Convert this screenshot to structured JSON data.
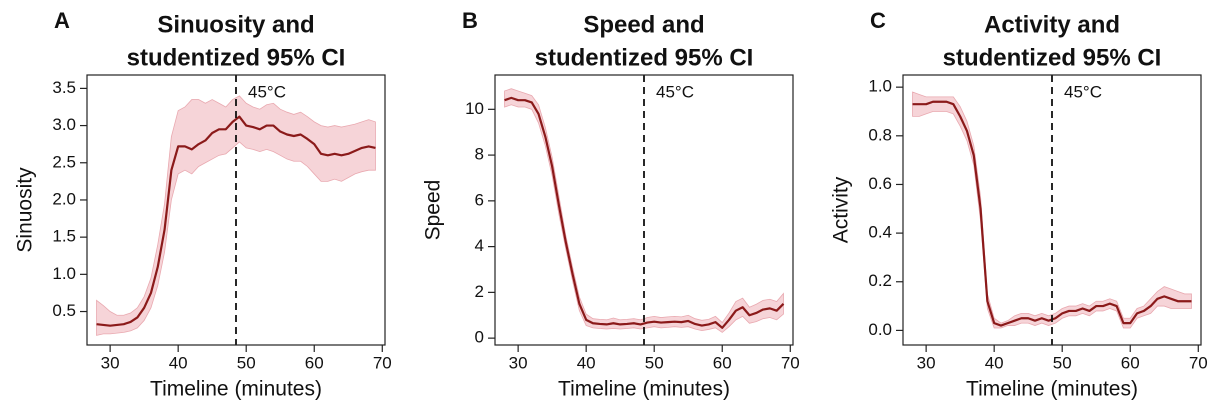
{
  "chart_data": [
    {
      "type": "line",
      "panel_label": "A",
      "title": [
        "Sinuosity and",
        "studentized 95% CI"
      ],
      "x_label": "Timeline (minutes)",
      "y_label": "Sinuosity",
      "xlim": [
        26.6,
        70.4
      ],
      "xticks": [
        30,
        40,
        50,
        60,
        70
      ],
      "ylim": [
        0.05,
        3.68
      ],
      "yticks": [
        0.5,
        {
          "value": 1,
          "label": "1.0"
        },
        1.5,
        {
          "value": 2,
          "label": "2.0"
        },
        2.5,
        {
          "value": 3,
          "label": "3.0"
        },
        3.5
      ],
      "vline": {
        "x": 48.5,
        "label": "45°C"
      },
      "x": [
        28,
        29,
        30,
        31,
        32,
        33,
        34,
        35,
        36,
        37,
        38,
        39,
        40,
        41,
        42,
        43,
        44,
        45,
        46,
        47,
        48,
        49,
        50,
        51,
        52,
        53,
        54,
        55,
        56,
        57,
        58,
        59,
        60,
        61,
        62,
        63,
        64,
        65,
        66,
        67,
        68,
        69
      ],
      "series": [
        {
          "color": "#8b1a1a",
          "band_color": "#f4cdd1",
          "values": [
            0.33,
            0.32,
            0.31,
            0.32,
            0.33,
            0.36,
            0.42,
            0.55,
            0.75,
            1.1,
            1.6,
            2.4,
            2.72,
            2.72,
            2.68,
            2.75,
            2.8,
            2.9,
            2.95,
            2.95,
            3.05,
            3.12,
            3.0,
            2.98,
            2.95,
            3.0,
            3.0,
            2.92,
            2.88,
            2.86,
            2.88,
            2.82,
            2.75,
            2.62,
            2.6,
            2.62,
            2.6,
            2.62,
            2.66,
            2.7,
            2.72,
            2.7
          ],
          "lower": [
            0.18,
            0.2,
            0.2,
            0.21,
            0.22,
            0.24,
            0.28,
            0.38,
            0.55,
            0.85,
            1.3,
            2.0,
            2.35,
            2.4,
            2.35,
            2.45,
            2.5,
            2.55,
            2.6,
            2.62,
            2.7,
            2.78,
            2.7,
            2.68,
            2.65,
            2.68,
            2.65,
            2.6,
            2.55,
            2.52,
            2.52,
            2.45,
            2.35,
            2.25,
            2.25,
            2.28,
            2.25,
            2.3,
            2.35,
            2.38,
            2.4,
            2.4
          ],
          "upper": [
            0.65,
            0.58,
            0.5,
            0.45,
            0.45,
            0.48,
            0.55,
            0.7,
            0.95,
            1.4,
            1.95,
            2.85,
            3.2,
            3.25,
            3.35,
            3.35,
            3.3,
            3.35,
            3.3,
            3.25,
            3.35,
            3.4,
            3.3,
            3.25,
            3.22,
            3.28,
            3.3,
            3.22,
            3.18,
            3.15,
            3.18,
            3.12,
            3.05,
            3.0,
            2.98,
            3.0,
            2.98,
            3.0,
            3.02,
            3.05,
            3.08,
            3.05
          ]
        }
      ]
    },
    {
      "type": "line",
      "panel_label": "B",
      "title": [
        "Speed and",
        "studentized 95% CI"
      ],
      "x_label": "Timeline (minutes)",
      "y_label": "Speed",
      "xlim": [
        26.6,
        70.4
      ],
      "xticks": [
        30,
        40,
        50,
        60,
        70
      ],
      "ylim": [
        -0.3,
        11.5
      ],
      "yticks": [
        0,
        2,
        4,
        6,
        8,
        10
      ],
      "vline": {
        "x": 48.5,
        "label": "45°C"
      },
      "x": [
        28,
        29,
        30,
        31,
        32,
        33,
        34,
        35,
        36,
        37,
        38,
        39,
        40,
        41,
        42,
        43,
        44,
        45,
        46,
        47,
        48,
        49,
        50,
        51,
        52,
        53,
        54,
        55,
        56,
        57,
        58,
        59,
        60,
        61,
        62,
        63,
        64,
        65,
        66,
        67,
        68,
        69
      ],
      "series": [
        {
          "color": "#8b1a1a",
          "band_color": "#f4cdd1",
          "values": [
            10.4,
            10.5,
            10.4,
            10.4,
            10.3,
            9.8,
            8.8,
            7.5,
            5.8,
            4.2,
            2.8,
            1.5,
            0.8,
            0.65,
            0.62,
            0.6,
            0.65,
            0.6,
            0.62,
            0.65,
            0.6,
            0.68,
            0.72,
            0.68,
            0.7,
            0.72,
            0.7,
            0.75,
            0.62,
            0.55,
            0.6,
            0.7,
            0.45,
            0.8,
            1.2,
            1.35,
            1.0,
            1.1,
            1.25,
            1.3,
            1.2,
            1.5
          ],
          "lower": [
            10.1,
            10.2,
            10.1,
            10.1,
            10.0,
            9.4,
            8.4,
            7.1,
            5.4,
            3.9,
            2.5,
            1.2,
            0.55,
            0.45,
            0.42,
            0.4,
            0.42,
            0.4,
            0.42,
            0.45,
            0.4,
            0.45,
            0.5,
            0.45,
            0.47,
            0.5,
            0.47,
            0.5,
            0.4,
            0.33,
            0.38,
            0.45,
            0.25,
            0.5,
            0.8,
            0.95,
            0.65,
            0.72,
            0.85,
            0.9,
            0.8,
            1.05
          ],
          "upper": [
            10.8,
            10.9,
            10.8,
            10.7,
            10.6,
            10.2,
            9.2,
            7.9,
            6.2,
            4.5,
            3.1,
            1.8,
            1.05,
            0.85,
            0.82,
            0.8,
            0.88,
            0.8,
            0.82,
            0.85,
            0.8,
            0.9,
            0.95,
            0.9,
            0.93,
            0.95,
            0.93,
            1.0,
            0.85,
            0.78,
            0.82,
            0.95,
            0.68,
            1.1,
            1.6,
            1.75,
            1.35,
            1.48,
            1.65,
            1.7,
            1.6,
            1.95
          ]
        }
      ]
    },
    {
      "type": "line",
      "panel_label": "C",
      "title": [
        "Activity and",
        "studentized 95% CI"
      ],
      "x_label": "Timeline (minutes)",
      "y_label": "Activity",
      "xlim": [
        26.6,
        70.4
      ],
      "xticks": [
        30,
        40,
        50,
        60,
        70
      ],
      "ylim": [
        -0.06,
        1.05
      ],
      "yticks": [
        {
          "value": 0,
          "label": "0.0"
        },
        0.2,
        0.4,
        0.6,
        0.8,
        {
          "value": 1,
          "label": "1.0"
        }
      ],
      "vline": {
        "x": 48.5,
        "label": "45°C"
      },
      "x": [
        28,
        29,
        30,
        31,
        32,
        33,
        34,
        35,
        36,
        37,
        38,
        39,
        40,
        41,
        42,
        43,
        44,
        45,
        46,
        47,
        48,
        49,
        50,
        51,
        52,
        53,
        54,
        55,
        56,
        57,
        58,
        59,
        60,
        61,
        62,
        63,
        64,
        65,
        66,
        67,
        68,
        69
      ],
      "series": [
        {
          "color": "#8b1a1a",
          "band_color": "#f4cdd1",
          "values": [
            0.93,
            0.93,
            0.93,
            0.94,
            0.94,
            0.94,
            0.93,
            0.88,
            0.82,
            0.72,
            0.5,
            0.12,
            0.03,
            0.02,
            0.03,
            0.04,
            0.05,
            0.05,
            0.04,
            0.05,
            0.04,
            0.05,
            0.07,
            0.08,
            0.08,
            0.09,
            0.08,
            0.1,
            0.1,
            0.11,
            0.1,
            0.03,
            0.03,
            0.07,
            0.08,
            0.1,
            0.13,
            0.14,
            0.13,
            0.12,
            0.12,
            0.12
          ],
          "lower": [
            0.88,
            0.88,
            0.89,
            0.9,
            0.9,
            0.9,
            0.89,
            0.84,
            0.78,
            0.68,
            0.45,
            0.09,
            0.01,
            0.01,
            0.02,
            0.02,
            0.03,
            0.03,
            0.02,
            0.03,
            0.02,
            0.03,
            0.05,
            0.06,
            0.06,
            0.07,
            0.06,
            0.08,
            0.08,
            0.09,
            0.08,
            0.01,
            0.01,
            0.05,
            0.06,
            0.07,
            0.1,
            0.1,
            0.09,
            0.09,
            0.09,
            0.09
          ],
          "upper": [
            0.98,
            0.97,
            0.96,
            0.96,
            0.96,
            0.96,
            0.96,
            0.92,
            0.86,
            0.76,
            0.55,
            0.15,
            0.05,
            0.03,
            0.04,
            0.06,
            0.07,
            0.07,
            0.06,
            0.07,
            0.06,
            0.07,
            0.09,
            0.1,
            0.1,
            0.11,
            0.1,
            0.12,
            0.12,
            0.13,
            0.12,
            0.05,
            0.05,
            0.09,
            0.1,
            0.13,
            0.16,
            0.18,
            0.17,
            0.16,
            0.15,
            0.15
          ]
        }
      ]
    }
  ]
}
